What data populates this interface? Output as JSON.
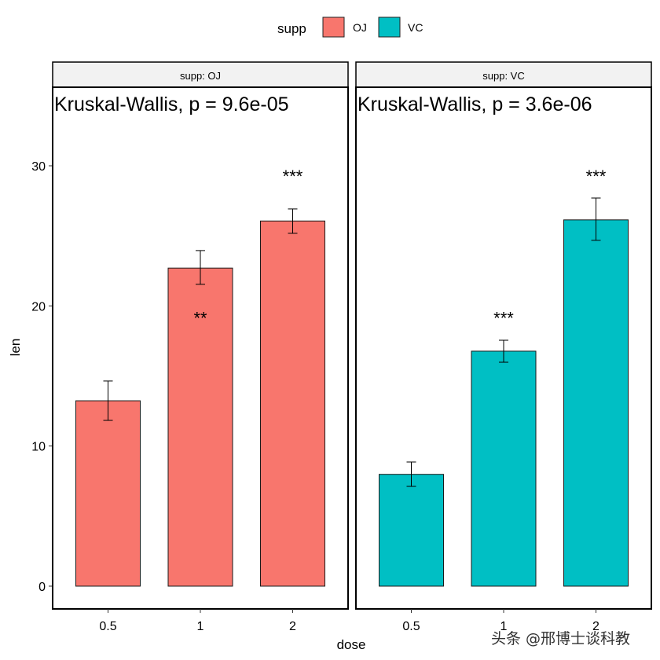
{
  "chart_data": {
    "type": "bar",
    "facet_variable": "supp",
    "xlabel": "dose",
    "ylabel": "len",
    "ylim": [
      -1.6,
      35.7
    ],
    "yticks": [
      0,
      10,
      20,
      30
    ],
    "categories": [
      "0.5",
      "1",
      "2"
    ],
    "legend": {
      "title": "supp",
      "position": "top",
      "entries": [
        {
          "label": "OJ",
          "color": "#F8766D"
        },
        {
          "label": "VC",
          "color": "#00BFC4"
        }
      ]
    },
    "panels": [
      {
        "strip": "supp: OJ",
        "annotation": "Kruskal-Wallis, p = 9.6e-05",
        "color": "#F8766D",
        "values": [
          13.23,
          22.7,
          26.06
        ],
        "err_low": [
          11.83,
          21.54,
          25.18
        ],
        "err_high": [
          14.64,
          23.95,
          26.92
        ],
        "signif": [
          "",
          "**",
          "***"
        ],
        "signif_y": [
          null,
          19.5,
          29.6
        ]
      },
      {
        "strip": "supp: VC",
        "annotation": "Kruskal-Wallis, p = 3.6e-06",
        "color": "#00BFC4",
        "values": [
          7.98,
          16.77,
          26.14
        ],
        "err_low": [
          7.12,
          15.98,
          24.68
        ],
        "err_high": [
          8.86,
          17.55,
          27.7
        ],
        "signif": [
          "",
          "***",
          "***"
        ],
        "signif_y": [
          null,
          19.5,
          29.6
        ]
      }
    ]
  },
  "watermark": "头条 @邢博士谈科教"
}
